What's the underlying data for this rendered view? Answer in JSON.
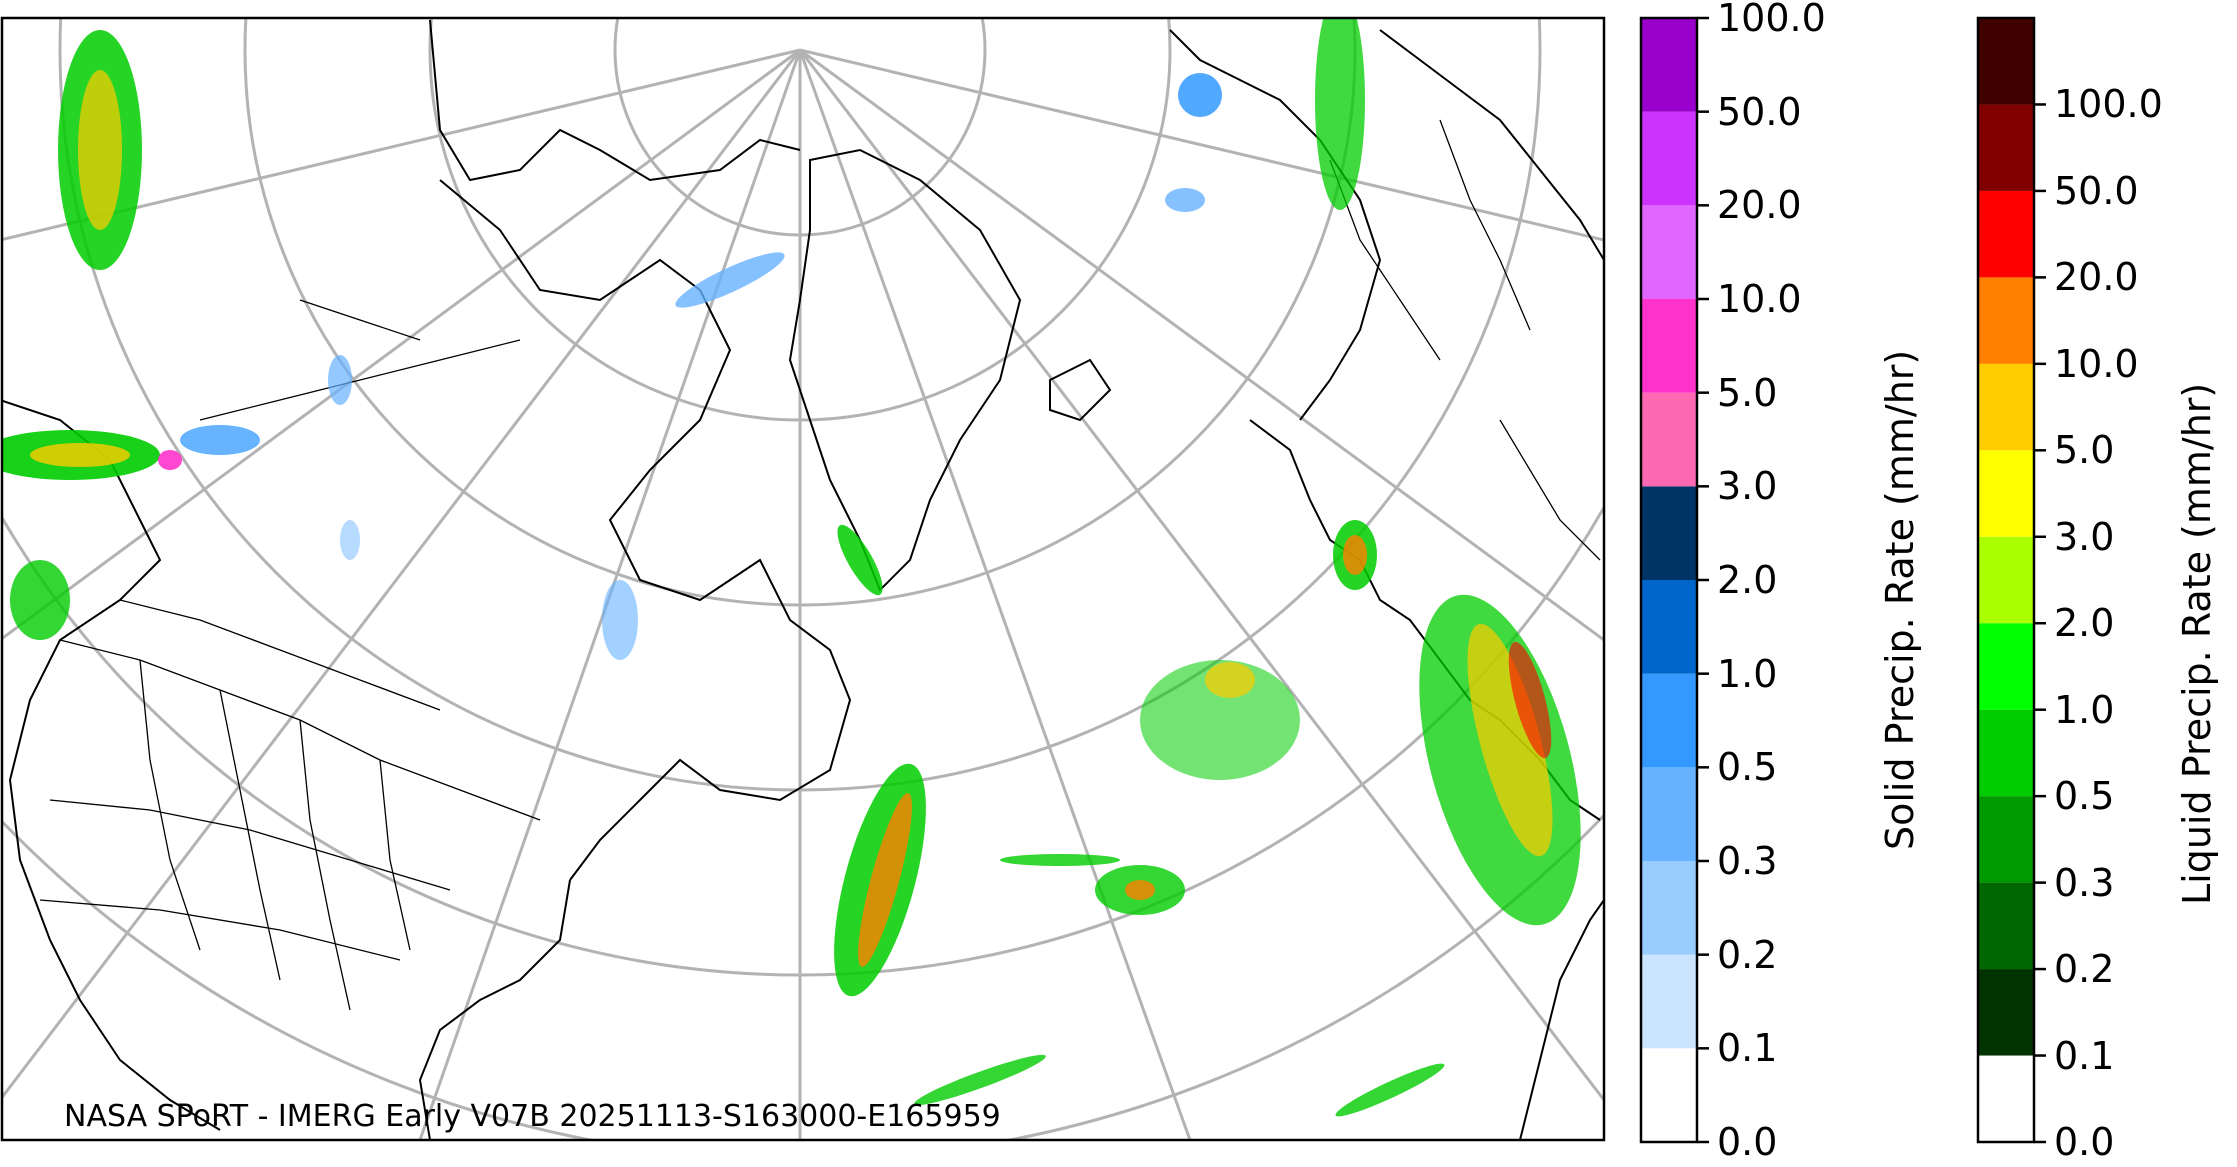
{
  "map": {
    "credit": "NASA SPoRT - IMERG Early V07B 20251113-S163000-E165959",
    "projection": "north polar stereographic",
    "region": "North Atlantic / North America / Europe"
  },
  "colorbars": [
    {
      "id": "solid",
      "label": "Solid Precip. Rate (mm/hr)",
      "ticks": [
        "0.0",
        "0.1",
        "0.2",
        "0.3",
        "0.5",
        "1.0",
        "2.0",
        "3.0",
        "5.0",
        "10.0",
        "20.0",
        "50.0",
        "100.0"
      ],
      "colors": [
        "#ffffff",
        "#cce5ff",
        "#99ccff",
        "#66b2ff",
        "#3399ff",
        "#0066cc",
        "#003366",
        "#ff69b4",
        "#ff33cc",
        "#e066ff",
        "#cc33ff",
        "#9900cc"
      ]
    },
    {
      "id": "liquid",
      "label": "Liquid Precip. Rate (mm/hr)",
      "ticks": [
        "0.0",
        "0.1",
        "0.2",
        "0.3",
        "0.5",
        "1.0",
        "2.0",
        "3.0",
        "5.0",
        "10.0",
        "20.0",
        "50.0",
        "100.0"
      ],
      "colors": [
        "#ffffff",
        "#003300",
        "#006600",
        "#009900",
        "#00cc00",
        "#00ff00",
        "#aaff00",
        "#ffff00",
        "#ffcc00",
        "#ff8000",
        "#ff0000",
        "#800000",
        "#400000"
      ]
    }
  ]
}
